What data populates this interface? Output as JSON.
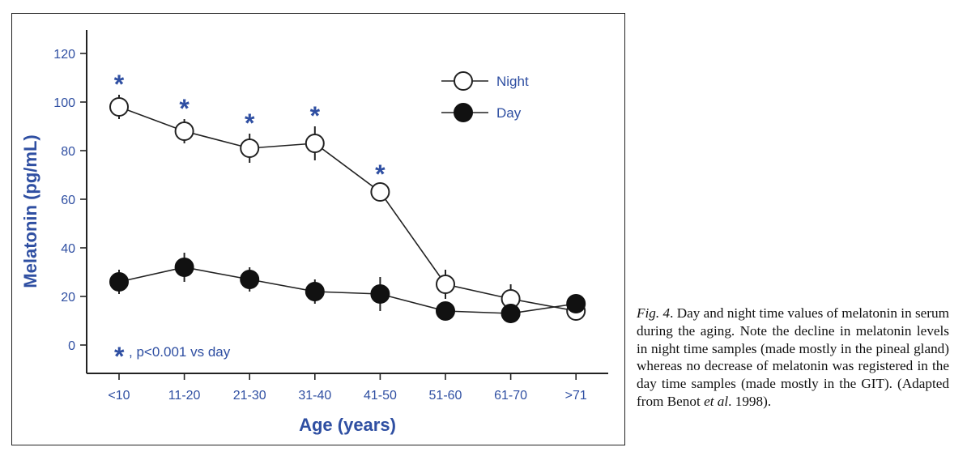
{
  "chart_data": {
    "type": "line",
    "xlabel": "Age (years)",
    "ylabel": "Melatonin (pg/mL)",
    "categories": [
      "<10",
      "11-20",
      "21-30",
      "31-40",
      "41-50",
      "51-60",
      "61-70",
      ">71"
    ],
    "yticks": [
      0,
      20,
      40,
      60,
      80,
      100,
      120
    ],
    "ylim": [
      -10,
      130
    ],
    "grid": false,
    "legend_position": "top-right",
    "series": [
      {
        "name": "Night",
        "marker": "open-circle",
        "values": [
          98,
          88,
          81,
          83,
          63,
          25,
          19,
          14
        ],
        "errors": [
          5,
          5,
          6,
          7,
          3,
          6,
          6,
          4
        ]
      },
      {
        "name": "Day",
        "marker": "filled-circle",
        "values": [
          26,
          32,
          27,
          22,
          21,
          14,
          13,
          17
        ],
        "errors": [
          5,
          6,
          5,
          5,
          7,
          3,
          4,
          3
        ]
      }
    ],
    "significance": {
      "symbol": "*",
      "category_indices": [
        0,
        1,
        2,
        3,
        4
      ],
      "note": ", p<0.001 vs day"
    }
  },
  "caption": {
    "fig_label": "Fig. 4",
    "text_before": ". Day and night time values of melatonin in serum during the aging. Note the decline in melatonin levels in night time samples (made mostly in the pineal gland) whereas no decrease of melatonin was registered in the day time samples (made mostly in the GIT). (Adapted from Benot ",
    "et_al": "et al",
    "text_after": ". 1998)."
  },
  "colors": {
    "text_blue": "#2f4fa2",
    "line": "#222222",
    "open_fill": "#ffffff",
    "filled": "#111111"
  }
}
